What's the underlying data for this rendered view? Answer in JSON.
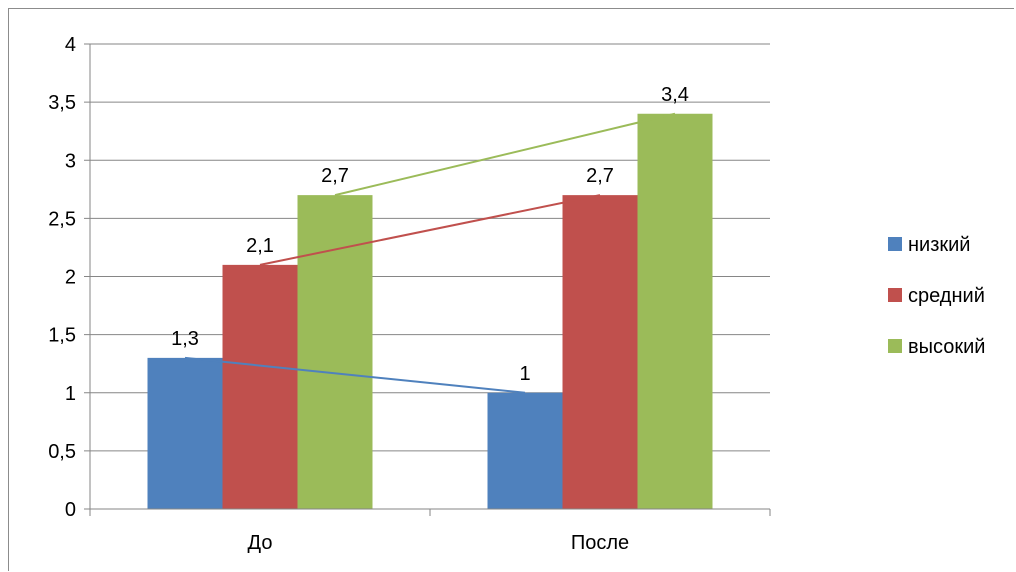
{
  "chart_data": {
    "type": "bar",
    "categories": [
      "До",
      "После"
    ],
    "series": [
      {
        "name": "низкий",
        "values": [
          1.3,
          1.0
        ],
        "color": "#4f81bd"
      },
      {
        "name": "средний",
        "values": [
          2.1,
          2.7
        ],
        "color": "#c0504d"
      },
      {
        "name": "высокий",
        "values": [
          2.7,
          3.4
        ],
        "color": "#9bbb59"
      }
    ],
    "data_labels": [
      [
        "1,3",
        "1"
      ],
      [
        "2,1",
        "2,7"
      ],
      [
        "2,7",
        "3,4"
      ]
    ],
    "ylim": [
      0,
      4
    ],
    "y_ticks": [
      0,
      0.5,
      1,
      1.5,
      2,
      2.5,
      3,
      3.5,
      4
    ],
    "y_tick_labels": [
      "0",
      "0,5",
      "1",
      "1,5",
      "2",
      "2,5",
      "3",
      "3,5",
      "4"
    ],
    "grid": true,
    "legend_position": "right",
    "trendlines": true,
    "title": "",
    "xlabel": "",
    "ylabel": ""
  }
}
